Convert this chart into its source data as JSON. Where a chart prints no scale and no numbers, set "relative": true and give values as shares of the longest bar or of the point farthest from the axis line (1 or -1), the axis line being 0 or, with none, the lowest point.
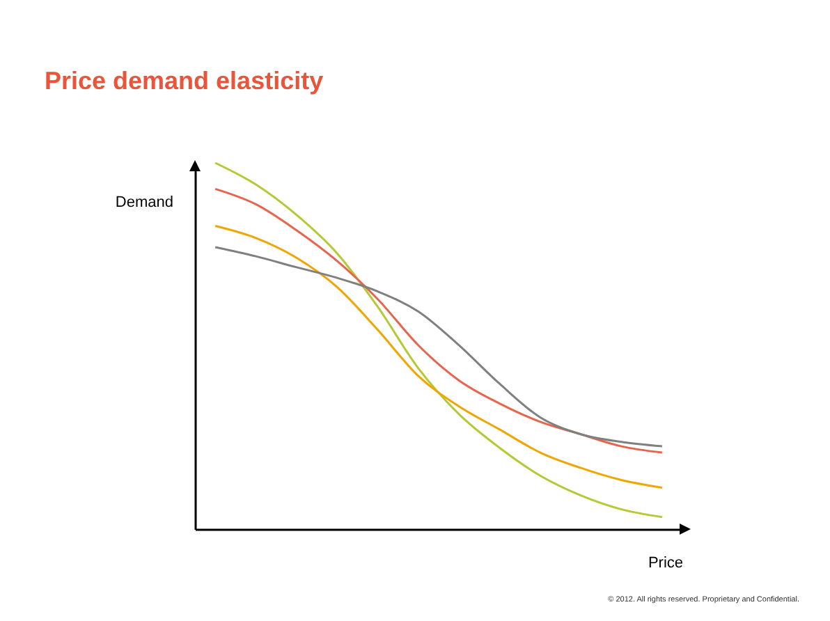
{
  "chart_data": {
    "type": "line",
    "title": "Price demand elasticity",
    "xlabel": "Price",
    "ylabel": "Demand",
    "relative": true,
    "annotations": [
      "© 2012. All rights reserved. Proprietary and Confidential."
    ],
    "categories": [
      null,
      null,
      null,
      null,
      null,
      null,
      null,
      null,
      null,
      null,
      null,
      null
    ],
    "series": [
      {
        "color": "#b5c935",
        "values": [
          1,
          0.941,
          0.858,
          0.753,
          0.607,
          0.439,
          0.314,
          0.222,
          0.146,
          0.092,
          0.054,
          0.033
        ]
      },
      {
        "color": "#e8654d",
        "values": [
          0.929,
          0.887,
          0.816,
          0.732,
          0.628,
          0.502,
          0.406,
          0.343,
          0.293,
          0.259,
          0.226,
          0.209
        ]
      },
      {
        "color": "#f0a500",
        "values": [
          0.828,
          0.795,
          0.741,
          0.661,
          0.544,
          0.418,
          0.335,
          0.272,
          0.209,
          0.167,
          0.134,
          0.113
        ]
      },
      {
        "color": "#808080",
        "values": [
          0.77,
          0.745,
          0.715,
          0.686,
          0.649,
          0.594,
          0.502,
          0.397,
          0.305,
          0.259,
          0.238,
          0.226
        ]
      }
    ]
  }
}
